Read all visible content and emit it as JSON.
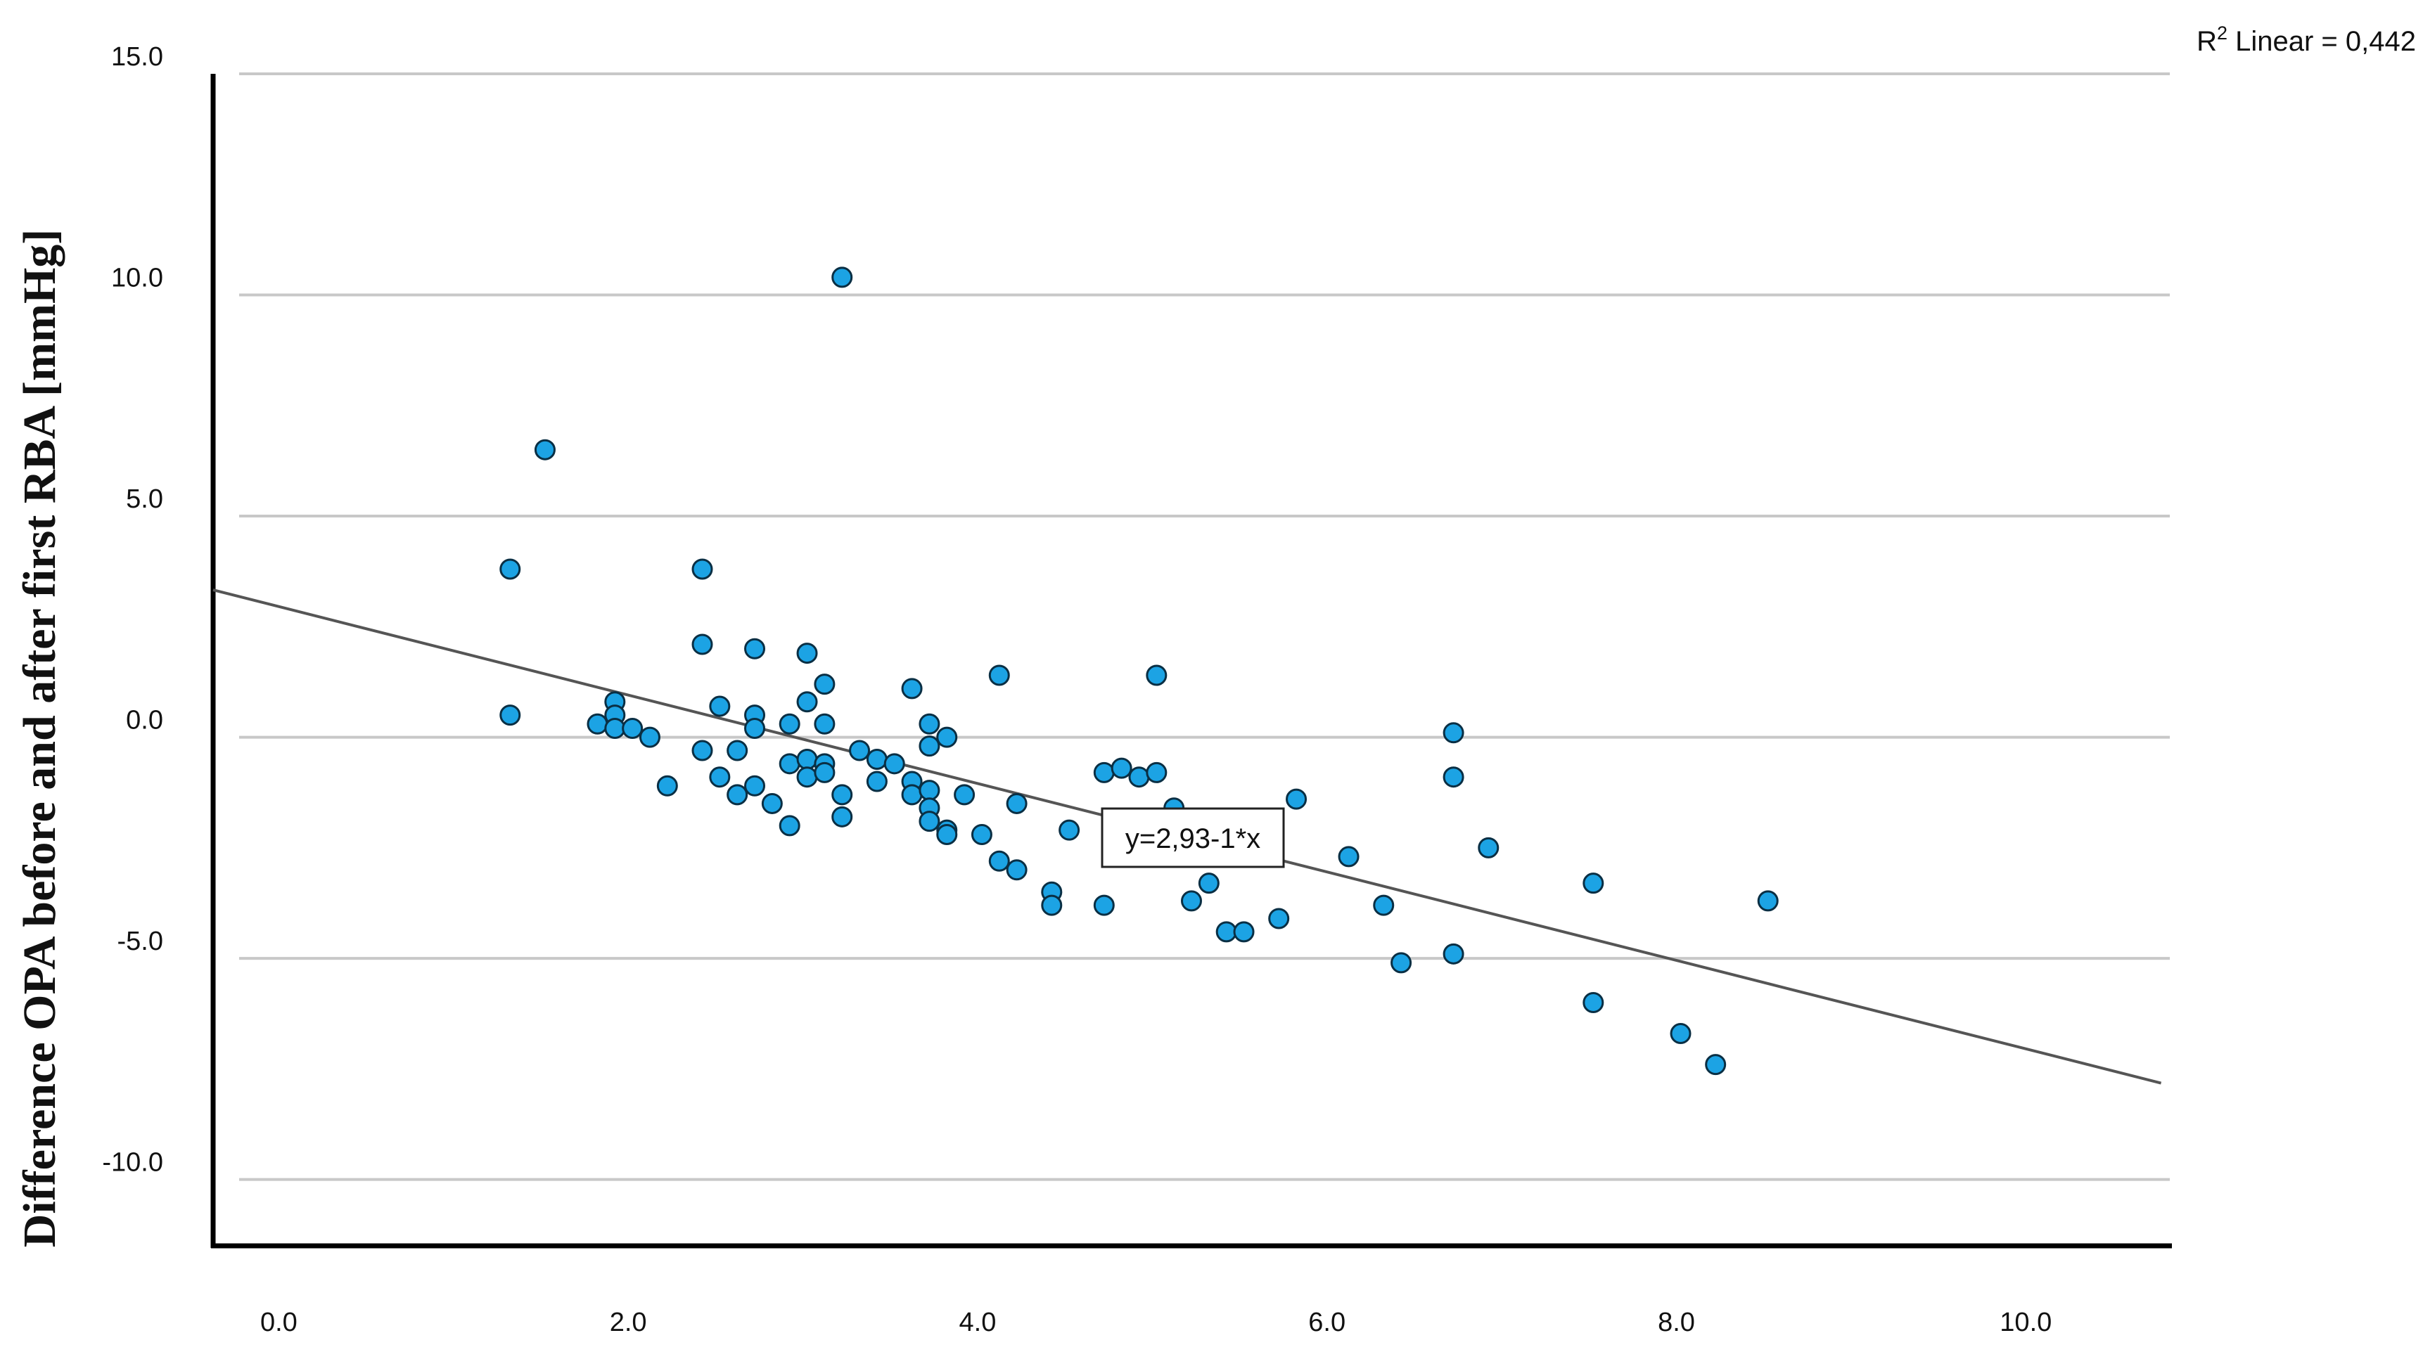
{
  "chart_data": {
    "type": "scatter",
    "title": "",
    "xlabel": "",
    "ylabel": "Difference OPA before and after first RBA [mmHg]",
    "xlim": [
      -0.4,
      10.8
    ],
    "ylim": [
      -11.5,
      15.0
    ],
    "x_ticks": [
      0.0,
      2.0,
      4.0,
      6.0,
      8.0,
      10.0
    ],
    "x_tick_labels": [
      "0.0",
      "2.0",
      "4.0",
      "6.0",
      "8.0",
      "10.0"
    ],
    "y_ticks": [
      15.0,
      10.0,
      5.0,
      0.0,
      -5.0,
      -10.0
    ],
    "y_tick_labels": [
      "15.0",
      "10.0",
      "5.0",
      "0.0",
      "-5.0",
      "-10.0"
    ],
    "grid": "horizontal",
    "fit_line": {
      "intercept": 2.93,
      "slope": -1,
      "label": "y=2,93-1*x"
    },
    "r2_label_prefix": "R",
    "r2_label_sup": "2",
    "r2_label_suffix": " Linear = 0,442",
    "point_color": "#1ca3e4",
    "point_edge_color": "#0a2f44",
    "line_color": "#555555",
    "grid_color": "#c8c8c8",
    "points": [
      {
        "x": 1.3,
        "y": 3.8
      },
      {
        "x": 1.3,
        "y": 0.5
      },
      {
        "x": 1.5,
        "y": 6.5
      },
      {
        "x": 1.8,
        "y": 0.3
      },
      {
        "x": 1.9,
        "y": 0.8
      },
      {
        "x": 1.9,
        "y": 0.5
      },
      {
        "x": 1.9,
        "y": 0.2
      },
      {
        "x": 2.0,
        "y": 0.2
      },
      {
        "x": 2.1,
        "y": 0.0
      },
      {
        "x": 2.2,
        "y": -1.1
      },
      {
        "x": 2.4,
        "y": 3.8
      },
      {
        "x": 2.4,
        "y": 2.1
      },
      {
        "x": 2.4,
        "y": -0.3
      },
      {
        "x": 2.5,
        "y": 0.7
      },
      {
        "x": 2.5,
        "y": -0.9
      },
      {
        "x": 2.6,
        "y": -0.3
      },
      {
        "x": 2.6,
        "y": -1.3
      },
      {
        "x": 2.7,
        "y": 2.0
      },
      {
        "x": 2.7,
        "y": 0.5
      },
      {
        "x": 2.7,
        "y": 0.2
      },
      {
        "x": 2.7,
        "y": -1.1
      },
      {
        "x": 2.8,
        "y": -1.5
      },
      {
        "x": 2.9,
        "y": 0.3
      },
      {
        "x": 2.9,
        "y": -0.6
      },
      {
        "x": 2.9,
        "y": -2.0
      },
      {
        "x": 3.0,
        "y": 1.9
      },
      {
        "x": 3.0,
        "y": 0.8
      },
      {
        "x": 3.0,
        "y": -0.5
      },
      {
        "x": 3.0,
        "y": -0.9
      },
      {
        "x": 3.1,
        "y": 1.2
      },
      {
        "x": 3.1,
        "y": 0.3
      },
      {
        "x": 3.1,
        "y": -0.6
      },
      {
        "x": 3.1,
        "y": -0.8
      },
      {
        "x": 3.2,
        "y": 10.4
      },
      {
        "x": 3.2,
        "y": -1.3
      },
      {
        "x": 3.2,
        "y": -1.8
      },
      {
        "x": 3.3,
        "y": -0.3
      },
      {
        "x": 3.4,
        "y": -0.5
      },
      {
        "x": 3.4,
        "y": -1.0
      },
      {
        "x": 3.5,
        "y": -0.6
      },
      {
        "x": 3.6,
        "y": 1.1
      },
      {
        "x": 3.6,
        "y": -1.0
      },
      {
        "x": 3.6,
        "y": -1.3
      },
      {
        "x": 3.7,
        "y": 0.3
      },
      {
        "x": 3.7,
        "y": -0.2
      },
      {
        "x": 3.7,
        "y": -1.2
      },
      {
        "x": 3.7,
        "y": -1.6
      },
      {
        "x": 3.7,
        "y": -1.9
      },
      {
        "x": 3.8,
        "y": 0.0
      },
      {
        "x": 3.8,
        "y": -2.1
      },
      {
        "x": 3.8,
        "y": -2.2
      },
      {
        "x": 3.9,
        "y": -1.3
      },
      {
        "x": 4.0,
        "y": -2.2
      },
      {
        "x": 4.1,
        "y": 1.4
      },
      {
        "x": 4.1,
        "y": -2.8
      },
      {
        "x": 4.2,
        "y": -1.5
      },
      {
        "x": 4.2,
        "y": -3.0
      },
      {
        "x": 4.4,
        "y": -3.5
      },
      {
        "x": 4.4,
        "y": -3.8
      },
      {
        "x": 4.5,
        "y": -2.1
      },
      {
        "x": 4.7,
        "y": -0.8
      },
      {
        "x": 4.7,
        "y": -3.8
      },
      {
        "x": 4.8,
        "y": -0.7
      },
      {
        "x": 4.9,
        "y": -0.9
      },
      {
        "x": 5.0,
        "y": 1.4
      },
      {
        "x": 5.0,
        "y": -0.8
      },
      {
        "x": 5.1,
        "y": -1.6
      },
      {
        "x": 5.2,
        "y": -3.7
      },
      {
        "x": 5.3,
        "y": -3.3
      },
      {
        "x": 5.4,
        "y": -4.4
      },
      {
        "x": 5.5,
        "y": -4.4
      },
      {
        "x": 5.7,
        "y": -4.1
      },
      {
        "x": 5.8,
        "y": -1.4
      },
      {
        "x": 6.1,
        "y": -2.7
      },
      {
        "x": 6.3,
        "y": -3.8
      },
      {
        "x": 6.4,
        "y": -5.1
      },
      {
        "x": 6.7,
        "y": 0.1
      },
      {
        "x": 6.7,
        "y": -0.9
      },
      {
        "x": 6.7,
        "y": -4.9
      },
      {
        "x": 6.9,
        "y": -2.5
      },
      {
        "x": 7.5,
        "y": -3.3
      },
      {
        "x": 7.5,
        "y": -6.0
      },
      {
        "x": 8.0,
        "y": -6.7
      },
      {
        "x": 8.2,
        "y": -7.4
      },
      {
        "x": 8.5,
        "y": -3.7
      }
    ]
  }
}
